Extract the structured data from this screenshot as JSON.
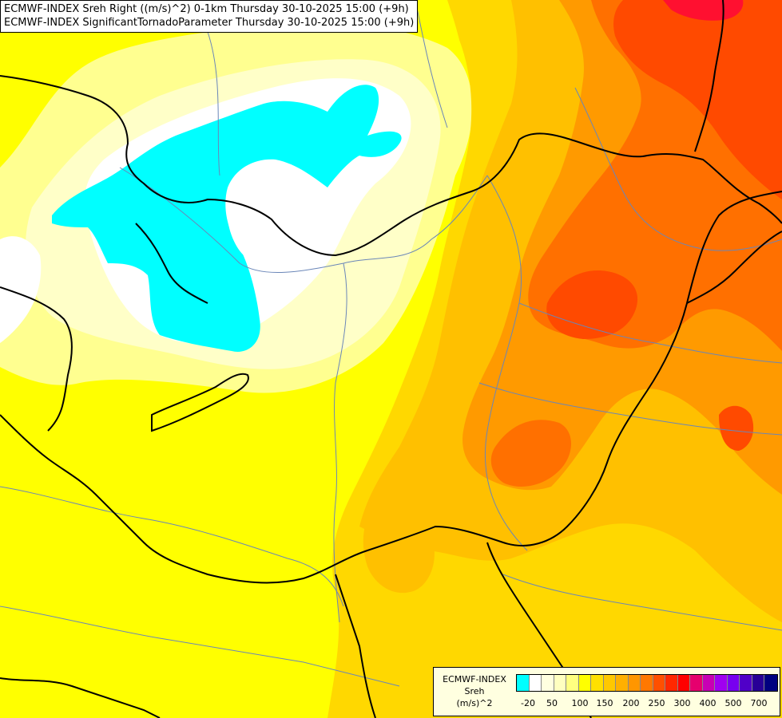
{
  "title": {
    "line1": "ECMWF-INDEX Sreh Right ((m/s)^2) 0-1km Thursday 30-10-2025 15:00 (+9h)",
    "line2": "ECMWF-INDEX SignificantTornadoParameter Thursday 30-10-2025 15:00 (+9h)"
  },
  "legend": {
    "model": "ECMWF-INDEX",
    "variable": "Sreh",
    "unit": "(m/s)^2",
    "colors": [
      "#00ffff",
      "#ffffff",
      "#ffffe0",
      "#ffffc0",
      "#ffff80",
      "#ffff00",
      "#ffe000",
      "#ffc800",
      "#ffb000",
      "#ff9600",
      "#ff7800",
      "#ff5000",
      "#ff2800",
      "#ff0000",
      "#e6006e",
      "#c800b4",
      "#a000f0",
      "#7800f0",
      "#5000c8",
      "#280096",
      "#000080"
    ],
    "tick_labels": [
      "-20",
      "50",
      "100",
      "150",
      "200",
      "250",
      "300",
      "400",
      "500",
      "700"
    ]
  },
  "map": {
    "colors": {
      "background": "#ffff00",
      "cyan": "#00ffff",
      "white": "#ffffff",
      "pale": "#ffffc8",
      "light": "#ffff90",
      "gold": "#ffd800",
      "orange": "#ffc000",
      "dark_orange": "#ff9a00",
      "red_orange": "#ff7000",
      "red": "#ff4a00",
      "crimson": "#ff1030",
      "border": "#000000",
      "river": "#6a86b8"
    }
  }
}
